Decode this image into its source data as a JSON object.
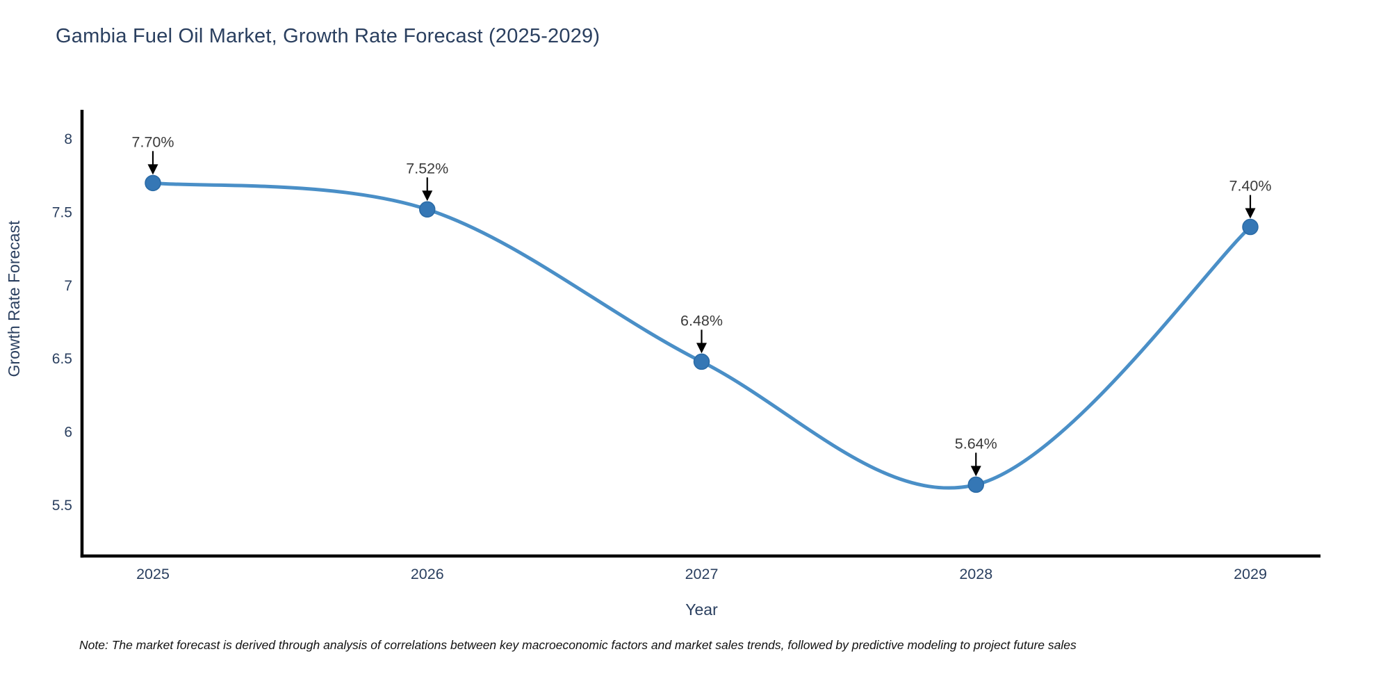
{
  "title": "Gambia Fuel Oil Market, Growth Rate Forecast (2025-2029)",
  "note": "Note: The market forecast is derived through analysis of correlations between key macroeconomic factors and market sales trends, followed by predictive modeling to project future sales",
  "chart_data": {
    "type": "line",
    "line_shape": "spline",
    "title": "Gambia Fuel Oil Market, Growth Rate Forecast (2025-2029)",
    "x": [
      "2025",
      "2026",
      "2027",
      "2028",
      "2029"
    ],
    "y": [
      7.7,
      7.52,
      6.48,
      5.64,
      7.4
    ],
    "point_labels": [
      "7.70%",
      "7.52%",
      "6.48%",
      "5.64%",
      "7.40%"
    ],
    "xlabel": "Year",
    "ylabel": "Growth Rate Forecast",
    "yticks": [
      8,
      7.5,
      7,
      6.5,
      6,
      5.5
    ],
    "ylim": [
      5.153,
      8.2
    ],
    "grid": false,
    "legend": "none",
    "colors": {
      "line": "#4a8fc7",
      "marker": "#3577b5",
      "marker_edge": "#2a6aa5",
      "axis": "#000000",
      "tick_label": "#2a3f5f",
      "axis_title": "#2a3f5f",
      "chart_title": "#2a3f5f",
      "annotation_text": "#3b3b3b",
      "annotation_arrow": "#000000",
      "note_text": "#111111",
      "background": "#ffffff"
    }
  }
}
